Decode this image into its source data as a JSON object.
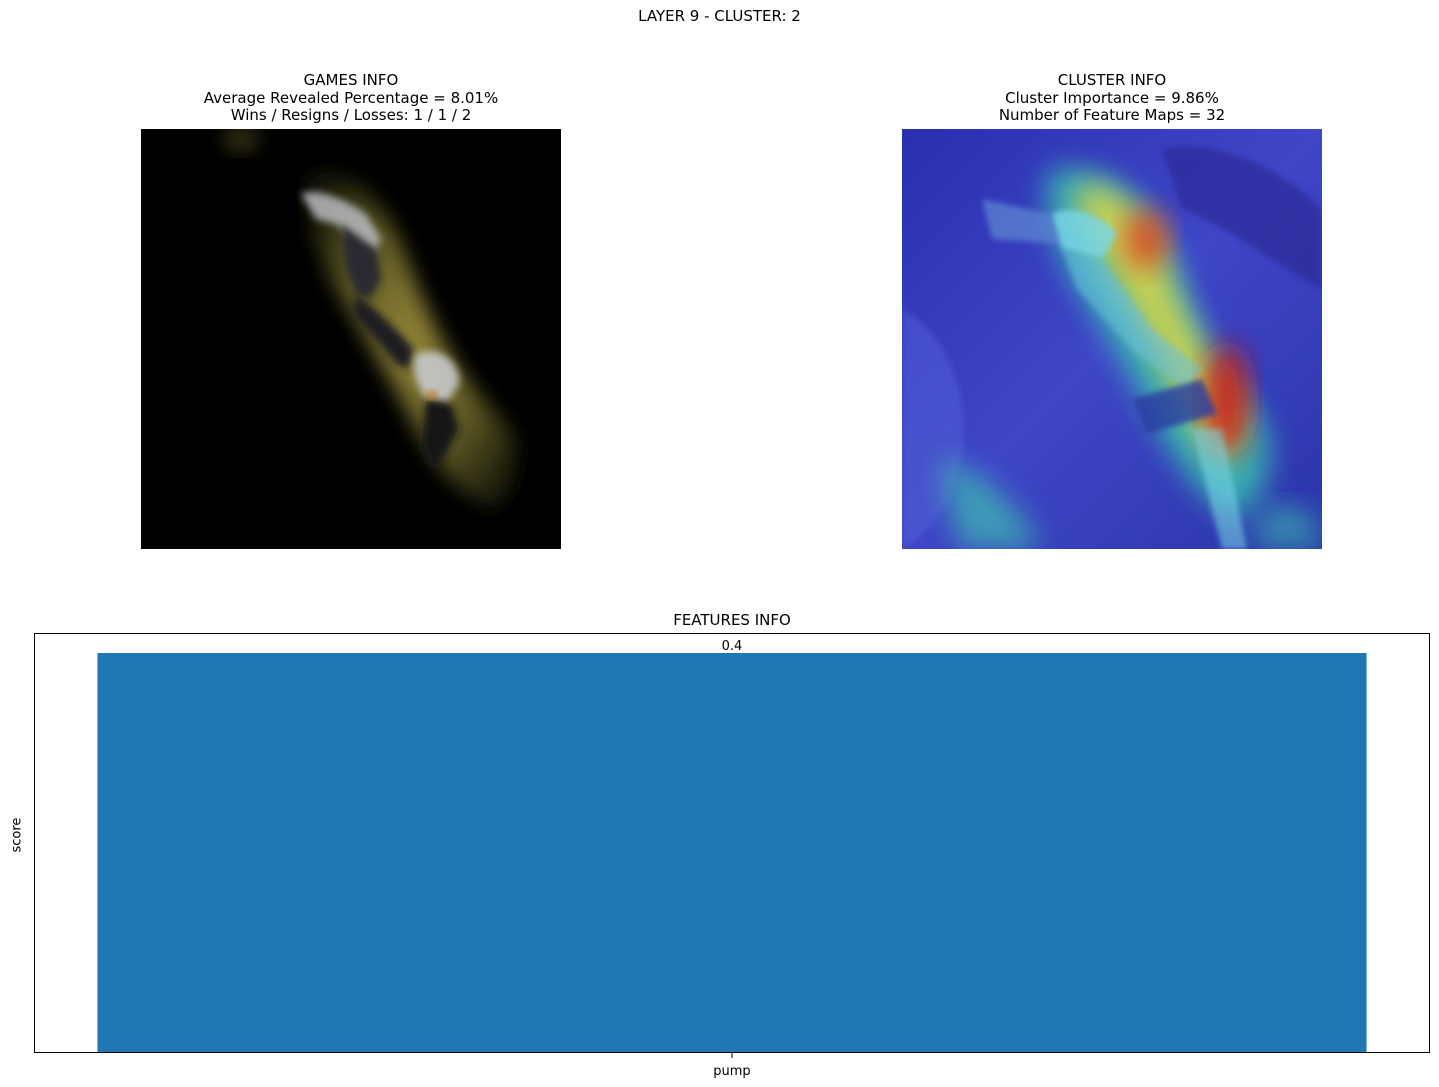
{
  "figure": {
    "suptitle": "LAYER 9 - CLUSTER: 2"
  },
  "games_info": {
    "title_lines": [
      "GAMES INFO",
      "Average Revealed Percentage = 8.01%",
      "Wins / Resigns / Losses: 1 / 1 / 2"
    ]
  },
  "cluster_info": {
    "title_lines": [
      "CLUSTER INFO",
      "Cluster Importance = 9.86%",
      "Number of Feature Maps = 32"
    ]
  },
  "chart_data": {
    "type": "bar",
    "title": "FEATURES INFO",
    "categories": [
      "pump"
    ],
    "values": [
      0.4
    ],
    "data_labels": [
      "0.4"
    ],
    "xlabel": "",
    "ylabel": "score",
    "ylim": [
      0,
      0.42
    ],
    "y_ticks_shown": false,
    "grid": false,
    "bar_color": "#1f77b4"
  }
}
